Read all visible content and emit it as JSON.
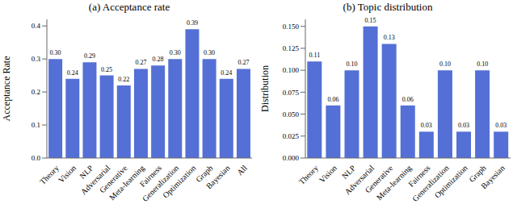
{
  "chart_data": [
    {
      "type": "bar",
      "title": "(a) Acceptance rate",
      "y_label": "Acceptance Rate",
      "categories": [
        "Theory",
        "Vision",
        "NLP",
        "Adversarial",
        "Generative",
        "Meta-learning",
        "Fairness",
        "Generalization",
        "Optimization",
        "Graph",
        "Bayesian",
        "All"
      ],
      "values": [
        0.3,
        0.24,
        0.29,
        0.25,
        0.22,
        0.27,
        0.28,
        0.3,
        0.39,
        0.3,
        0.24,
        0.27
      ],
      "value_labels": [
        "0.30",
        "0.24",
        "0.29",
        "0.25",
        "0.22",
        "0.27",
        "0.28",
        "0.30",
        "0.39",
        "0.30",
        "0.24",
        "0.27"
      ],
      "color": "#5470d6",
      "ylim": [
        0,
        0.42
      ],
      "yticks": [
        {
          "value": 0,
          "label": "0.0"
        },
        0.1,
        0.2,
        0.3,
        0.4
      ],
      "grid": false,
      "data_labels": true
    },
    {
      "type": "bar",
      "title": "(b) Topic distribution",
      "y_label": "Distribution",
      "categories": [
        "Theory",
        "Vision",
        "NLP",
        "Adversarial",
        "Generative",
        "Meta-learning",
        "Fairness",
        "Generalization",
        "Optimization",
        "Graph",
        "Bayesian"
      ],
      "values": [
        0.11,
        0.06,
        0.1,
        0.15,
        0.13,
        0.06,
        0.03,
        0.1,
        0.03,
        0.1,
        0.03
      ],
      "value_labels": [
        "0.11",
        "0.06",
        "0.10",
        "0.15",
        "0.13",
        "0.06",
        "0.03",
        "0.10",
        "0.03",
        "0.10",
        "0.03"
      ],
      "color": "#5470d6",
      "ylim": [
        0,
        0.158
      ],
      "yticks": [
        {
          "value": 0,
          "label": "0.000"
        },
        {
          "value": 0.025,
          "label": "0.025"
        },
        {
          "value": 0.05,
          "label": "0.050"
        },
        {
          "value": 0.075,
          "label": "0.075"
        },
        {
          "value": 0.1,
          "label": "0.100"
        },
        {
          "value": 0.125,
          "label": "0.125"
        },
        {
          "value": 0.15,
          "label": "0.150"
        }
      ],
      "grid": false,
      "data_labels": true
    }
  ]
}
